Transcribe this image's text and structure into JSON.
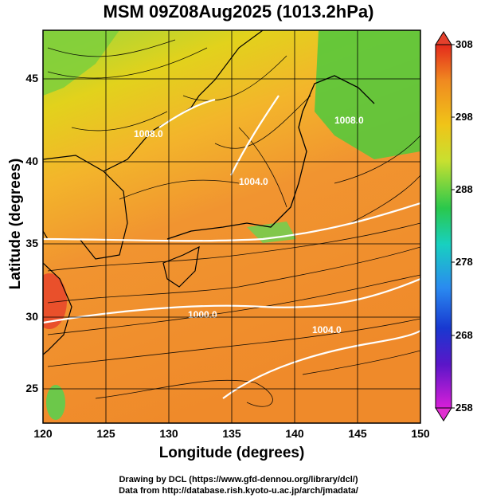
{
  "title": "MSM 09Z08Aug2025 (1013.2hPa)",
  "map": {
    "x_axis": {
      "label": "Longitude (degrees)",
      "ticks": [
        "120",
        "125",
        "130",
        "135",
        "140",
        "145",
        "150"
      ]
    },
    "y_axis": {
      "label": "Latitude  (degrees)",
      "ticks": [
        "45",
        "40",
        "35",
        "30",
        "25"
      ]
    },
    "colorbar": {
      "ticks": [
        "308",
        "298",
        "288",
        "278",
        "268",
        "258"
      ],
      "range": [
        258,
        308
      ]
    },
    "contour_labels": [
      "1008.0",
      "1004.0",
      "1000.0",
      "1004.0",
      "1008.0"
    ]
  },
  "credits": {
    "line1": "Drawing by DCL (https://www.gfd-dennou.org/library/dcl/)",
    "line2": "Data from http://database.rish.kyoto-u.ac.jp/arch/jmadata/"
  }
}
